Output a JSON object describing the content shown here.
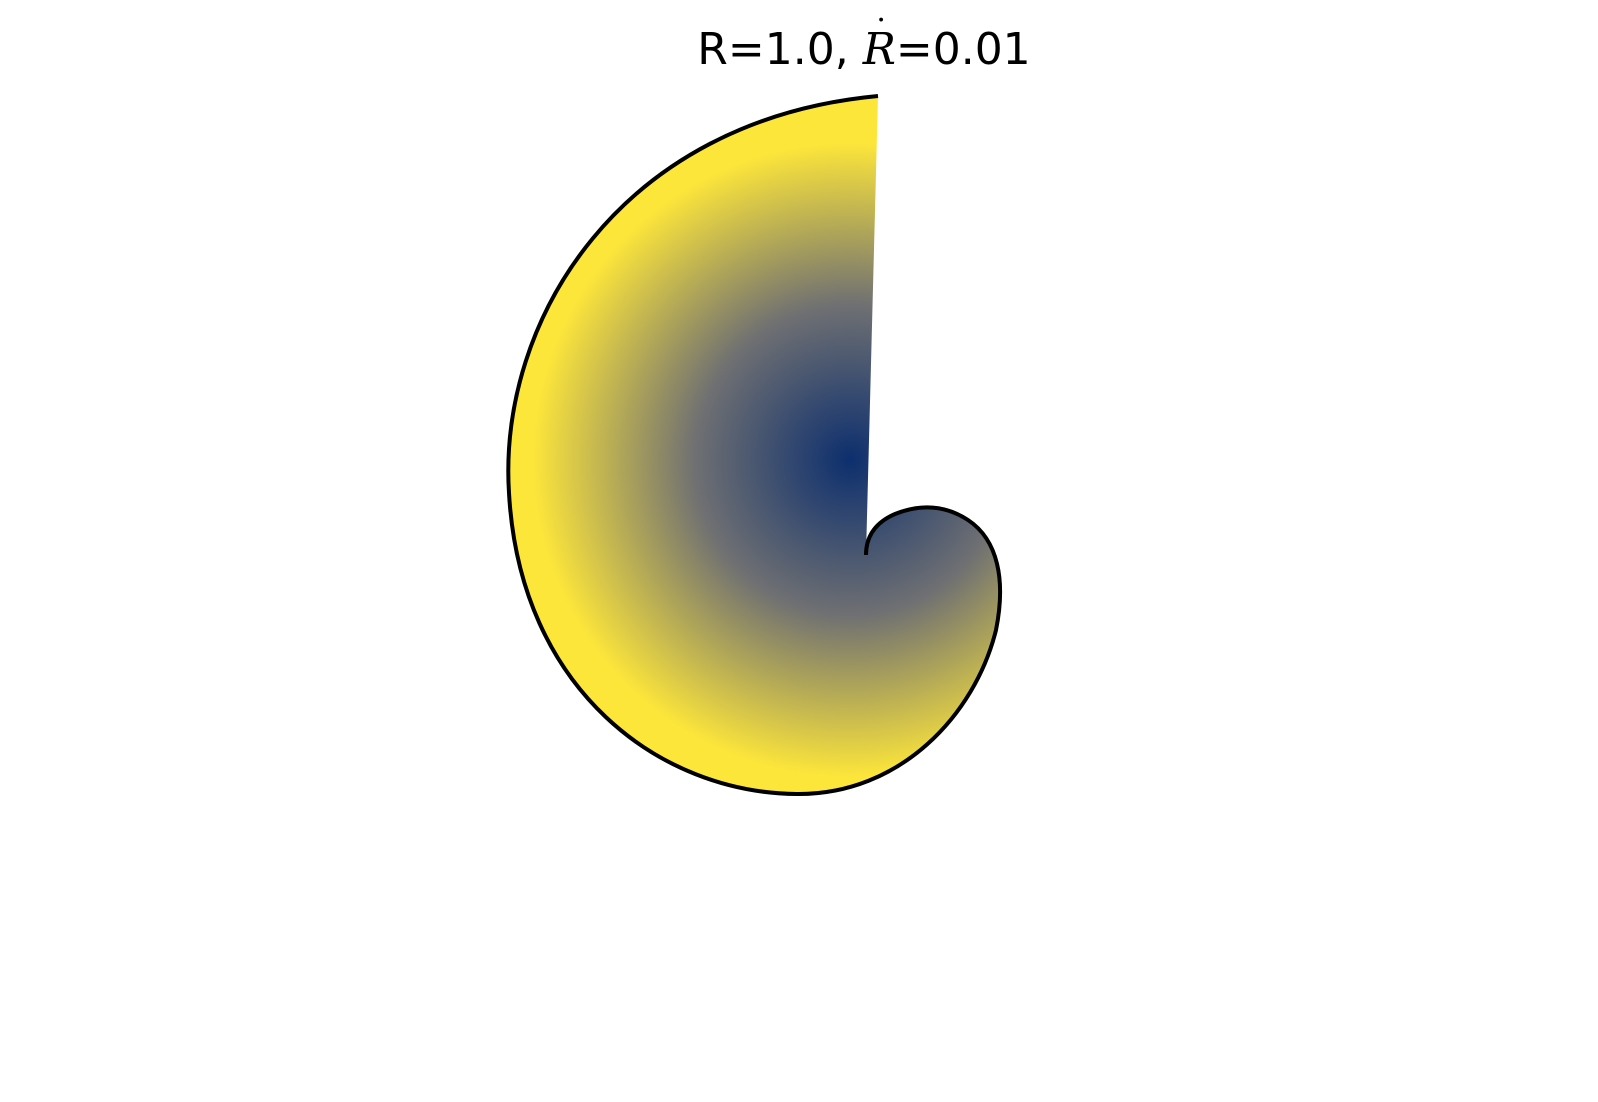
{
  "title": {
    "prefix": "R=1.0,",
    "symbol": "R",
    "suffix": "=0.01"
  },
  "colors": {
    "center": "#0d2f6e",
    "mid": "#6f7072",
    "edge": "#fde63a",
    "outline": "#000000"
  },
  "parameters": {
    "R": 1.0,
    "R_dot": 0.01
  }
}
